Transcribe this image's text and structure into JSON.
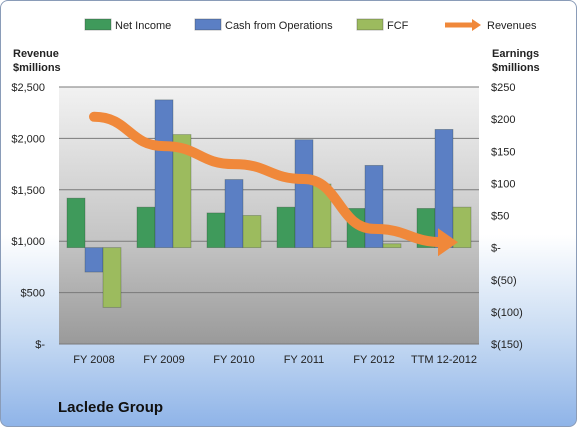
{
  "company": "Laclede Group",
  "chart_data": {
    "type": "bar",
    "categories": [
      "FY 2008",
      "FY 2009",
      "FY 2010",
      "FY 2011",
      "FY 2012",
      "TTM 12-2012"
    ],
    "series": [
      {
        "name": "Net Income",
        "axis": "right",
        "values": [
          77,
          63,
          54,
          63,
          61,
          61
        ],
        "color": "#3f9a5b"
      },
      {
        "name": "Cash from Operations",
        "axis": "right",
        "values": [
          -38,
          230,
          106,
          168,
          128,
          184
        ],
        "color": "#5b7fc4"
      },
      {
        "name": "FCF",
        "axis": "right",
        "values": [
          -93,
          176,
          50,
          99,
          6,
          63
        ],
        "color": "#9cbb5e"
      },
      {
        "name": "Revenues",
        "type": "line-arrow",
        "axis": "left",
        "values": [
          2210,
          1925,
          1750,
          1605,
          1120,
          990
        ],
        "color": "#f0883a"
      }
    ],
    "left_axis": {
      "title_lines": [
        "Revenue",
        "$millions"
      ],
      "range": [
        0,
        2500
      ],
      "ticks": [
        0,
        500,
        1000,
        1500,
        2000,
        2500
      ],
      "tick_labels": [
        "$-",
        "$500",
        "$1,000",
        "$1,500",
        "$2,000",
        "$2,500"
      ]
    },
    "right_axis": {
      "title_lines": [
        "Earnings",
        "$millions"
      ],
      "range": [
        -150,
        250
      ],
      "ticks": [
        -150,
        -100,
        -50,
        0,
        50,
        100,
        150,
        200,
        250
      ],
      "tick_labels": [
        "$(150)",
        "$(100)",
        "$(50)",
        "$-",
        "$50",
        "$100",
        "$150",
        "$200",
        "$250"
      ]
    },
    "legend_position": "top",
    "grid": true
  }
}
